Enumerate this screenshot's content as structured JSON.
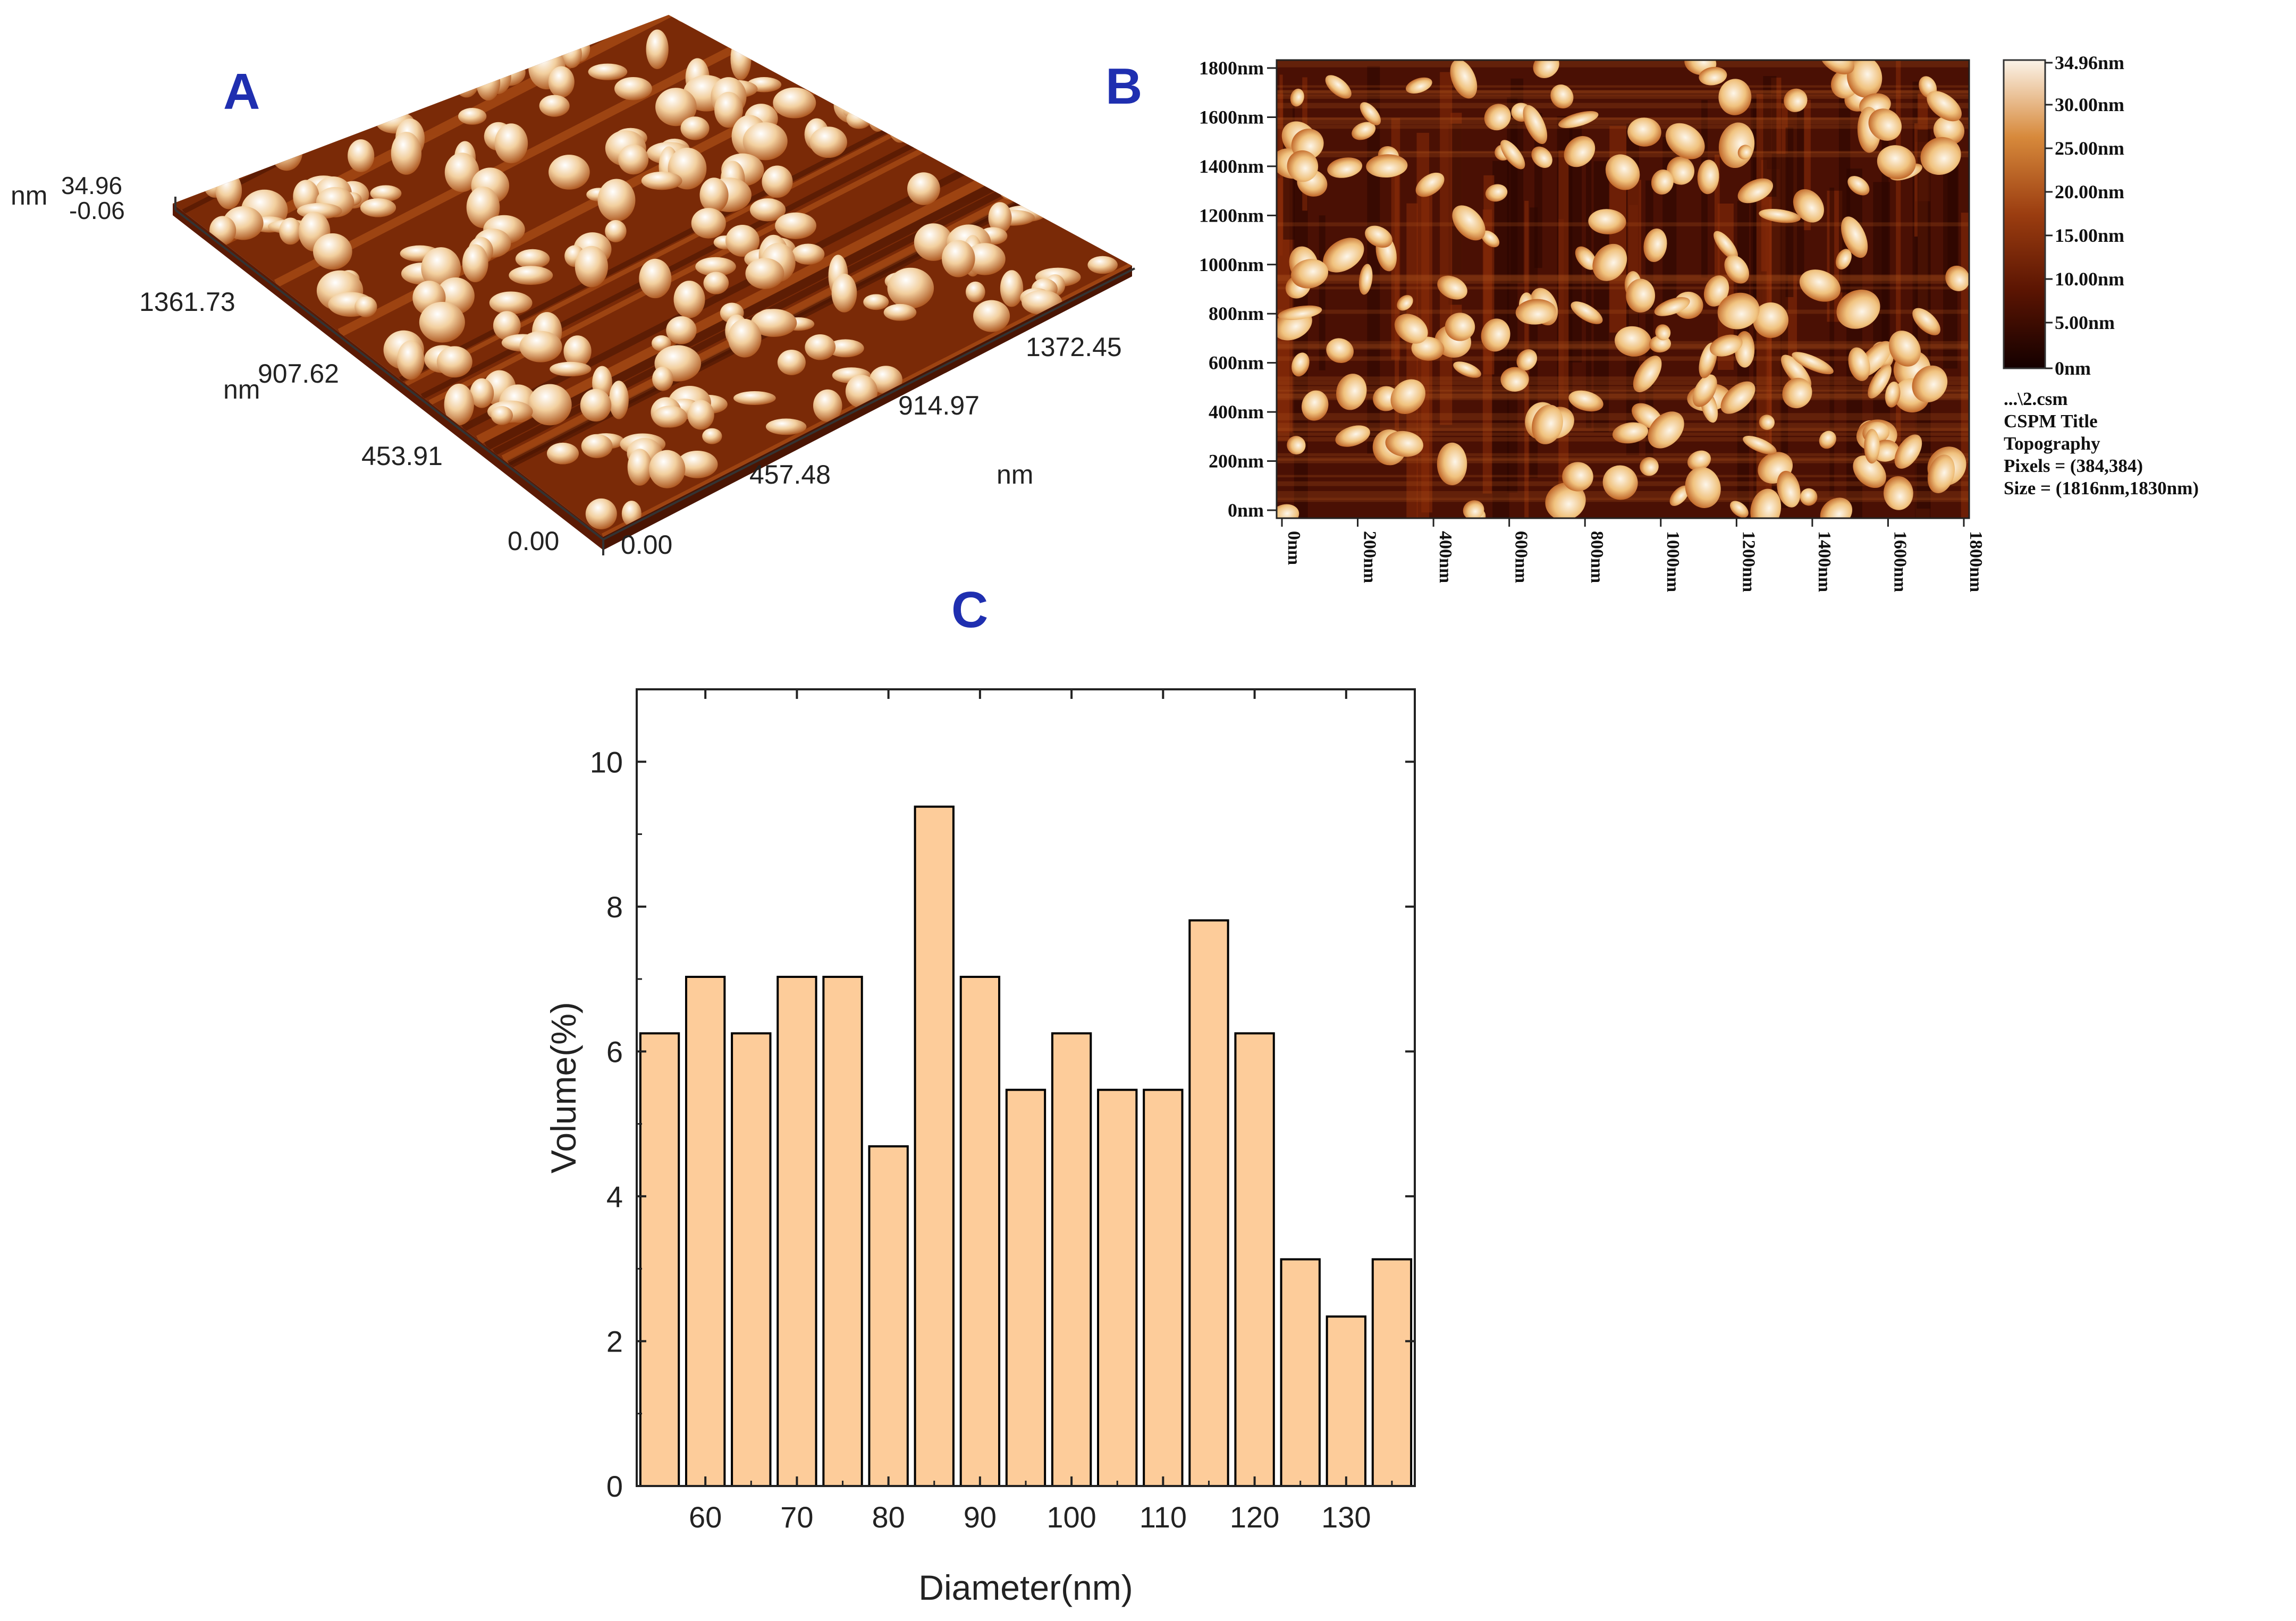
{
  "panels": {
    "a": {
      "label": "A"
    },
    "b": {
      "label": "B"
    },
    "c": {
      "label": "C"
    }
  },
  "panel_a": {
    "z_unit": "nm",
    "z_max": "34.96",
    "z_min": "-0.06",
    "y_ticks": [
      "1361.73",
      "907.62",
      "453.91",
      "0.00"
    ],
    "y_unit": "nm",
    "x_ticks": [
      "0.00",
      "457.48",
      "914.97",
      "1372.45"
    ],
    "x_unit": "nm"
  },
  "panel_b": {
    "y_ticks": [
      "1800nm",
      "1600nm",
      "1400nm",
      "1200nm",
      "1000nm",
      "800nm",
      "600nm",
      "400nm",
      "200nm",
      "0nm"
    ],
    "x_ticks": [
      "0nm",
      "200nm",
      "400nm",
      "600nm",
      "800nm",
      "1000nm",
      "1200nm",
      "1400nm",
      "1600nm",
      "1800nm"
    ],
    "colorbar_ticks": [
      "34.96nm",
      "30.00nm",
      "25.00nm",
      "20.00nm",
      "15.00nm",
      "10.00nm",
      "5.00nm",
      "0nm"
    ],
    "colors": {
      "low": "#140000",
      "mid1": "#5a1402",
      "mid2": "#9b3d10",
      "mid3": "#d7893b",
      "high": "#fbf3e8"
    },
    "info": [
      "...\\2.csm",
      "CSPM Title",
      "Topography",
      "Pixels = (384,384)",
      "Size = (1816nm,1830nm)"
    ]
  },
  "chart_data": {
    "type": "bar",
    "title": "",
    "xlabel": "Diameter(nm)",
    "ylabel": "Volume(%)",
    "x": [
      55,
      60,
      65,
      70,
      75,
      80,
      85,
      90,
      95,
      100,
      105,
      110,
      115,
      120,
      125,
      130,
      135
    ],
    "values": [
      6.25,
      7.03,
      6.25,
      7.03,
      7.03,
      4.69,
      9.38,
      7.03,
      5.47,
      6.25,
      5.47,
      5.47,
      7.81,
      6.25,
      3.13,
      2.34,
      3.13
    ],
    "xlim": [
      52.5,
      137.5
    ],
    "ylim": [
      0,
      11
    ],
    "xticks": [
      60,
      70,
      80,
      90,
      100,
      110,
      120,
      130
    ],
    "yticks": [
      0,
      2,
      4,
      6,
      8,
      10
    ],
    "bar_color": "#fdcc9a",
    "edge_color": "#000000"
  }
}
